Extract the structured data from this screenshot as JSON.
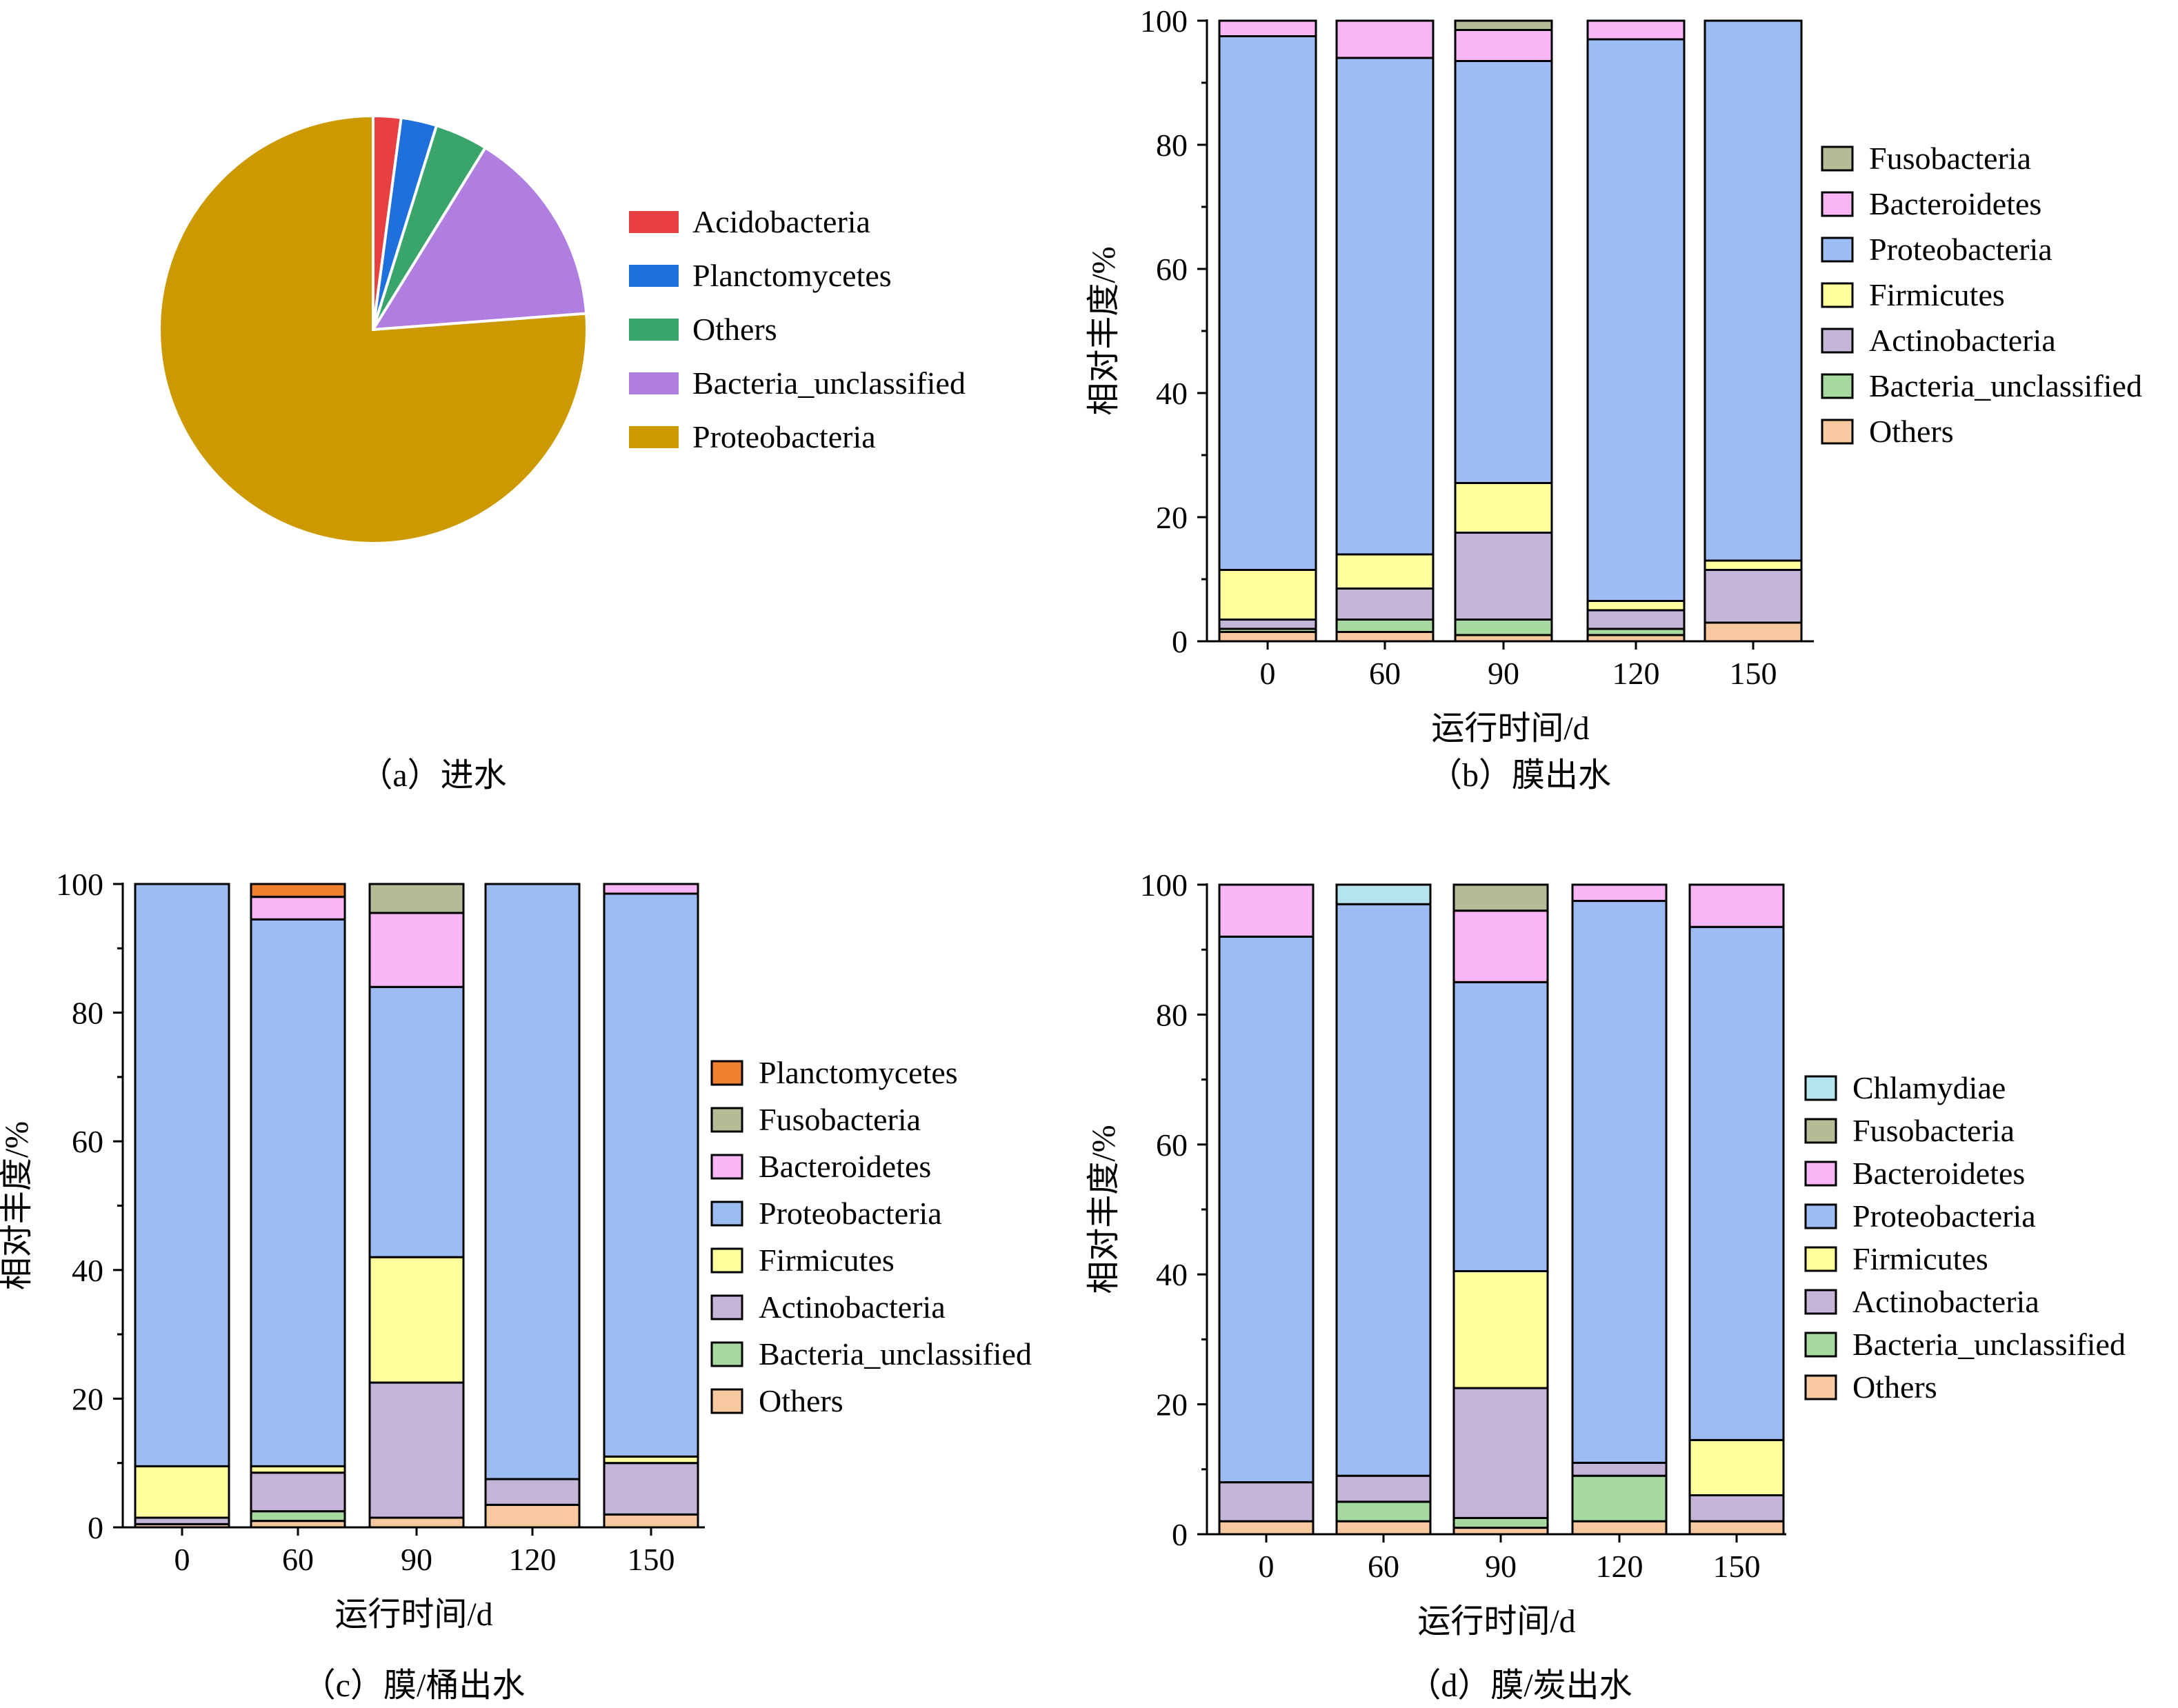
{
  "colors": {
    "Acidobacteria_pie": "#e84040",
    "Planctomycetes_pie": "#1f6fdc",
    "Others_pie": "#3aa56b",
    "Bacteria_unclassified_pie": "#b07ee0",
    "Proteobacteria_pie": "#cc9a00",
    "Others": "#f8c9a0",
    "Bacteria_unclassified": "#a6d9a0",
    "Actinobacteria": "#c3b4d8",
    "Firmicutes": "#ffff9e",
    "Proteobacteria": "#9dbcf3",
    "Bacteroidetes": "#f9b6f6",
    "Fusobacteria": "#b4bc96",
    "Planctomycetes": "#f08030",
    "Chlamydiae": "#b4e4ee"
  },
  "chart_data": [
    {
      "type": "pie",
      "caption": "（a）进水",
      "legend": [
        "Acidobacteria",
        "Planctomycetes",
        "Others",
        "Bacteria_unclassified",
        "Proteobacteria"
      ],
      "slices": [
        {
          "name": "Acidobacteria",
          "value": 2.1
        },
        {
          "name": "Planctomycetes",
          "value": 2.7
        },
        {
          "name": "Others",
          "value": 4.0
        },
        {
          "name": "Bacteria_unclassified",
          "value": 15.0
        },
        {
          "name": "Proteobacteria",
          "value": 76.2
        }
      ]
    },
    {
      "type": "bar",
      "stacked": true,
      "caption": "（b）膜出水",
      "xlabel": "运行时间/d",
      "ylabel": "相对丰度/%",
      "ylim": [
        0,
        100
      ],
      "yticks": [
        "0",
        "20",
        "40",
        "60",
        "80",
        "100"
      ],
      "categories": [
        "0",
        "60",
        "90",
        "120",
        "150"
      ],
      "legend": [
        "Fusobacteria",
        "Bacteroidetes",
        "Proteobacteria",
        "Firmicutes",
        "Actinobacteria",
        "Bacteria_unclassified",
        "Others"
      ],
      "series": [
        {
          "name": "Others",
          "values": [
            1.5,
            1.5,
            1.0,
            1.0,
            3.0
          ]
        },
        {
          "name": "Bacteria_unclassified",
          "values": [
            0.5,
            2.0,
            2.5,
            1.0,
            0.0
          ]
        },
        {
          "name": "Actinobacteria",
          "values": [
            1.5,
            5.0,
            14.0,
            3.0,
            8.5
          ]
        },
        {
          "name": "Firmicutes",
          "values": [
            8.0,
            5.5,
            8.0,
            1.5,
            1.5
          ]
        },
        {
          "name": "Proteobacteria",
          "values": [
            86.0,
            80.0,
            68.0,
            90.5,
            87.0
          ]
        },
        {
          "name": "Bacteroidetes",
          "values": [
            2.5,
            6.0,
            5.0,
            3.0,
            0.0
          ]
        },
        {
          "name": "Fusobacteria",
          "values": [
            0.0,
            0.0,
            1.5,
            0.0,
            0.0
          ]
        }
      ]
    },
    {
      "type": "bar",
      "stacked": true,
      "caption": "（c）膜/桶出水",
      "xlabel": "运行时间/d",
      "ylabel": "相对丰度/%",
      "ylim": [
        0,
        100
      ],
      "yticks": [
        "0",
        "20",
        "40",
        "60",
        "80",
        "100"
      ],
      "categories": [
        "0",
        "60",
        "90",
        "120",
        "150"
      ],
      "legend": [
        "Planctomycetes",
        "Fusobacteria",
        "Bacteroidetes",
        "Proteobacteria",
        "Firmicutes",
        "Actinobacteria",
        "Bacteria_unclassified",
        "Others"
      ],
      "series": [
        {
          "name": "Others",
          "values": [
            0.5,
            1.0,
            1.5,
            3.5,
            2.0
          ]
        },
        {
          "name": "Bacteria_unclassified",
          "values": [
            0.0,
            1.5,
            0.0,
            0.0,
            0.0
          ]
        },
        {
          "name": "Actinobacteria",
          "values": [
            1.0,
            6.0,
            21.0,
            4.0,
            8.0
          ]
        },
        {
          "name": "Firmicutes",
          "values": [
            8.0,
            1.0,
            19.5,
            0.0,
            1.0
          ]
        },
        {
          "name": "Proteobacteria",
          "values": [
            90.5,
            85.0,
            42.0,
            92.5,
            87.5
          ]
        },
        {
          "name": "Bacteroidetes",
          "values": [
            0.0,
            3.5,
            11.5,
            0.0,
            1.5
          ]
        },
        {
          "name": "Fusobacteria",
          "values": [
            0.0,
            0.0,
            4.5,
            0.0,
            0.0
          ]
        },
        {
          "name": "Planctomycetes",
          "values": [
            0.0,
            2.0,
            0.0,
            0.0,
            0.0
          ]
        }
      ]
    },
    {
      "type": "bar",
      "stacked": true,
      "caption": "（d）膜/炭出水",
      "xlabel": "运行时间/d",
      "ylabel": "相对丰度/%",
      "ylim": [
        0,
        100
      ],
      "yticks": [
        "0",
        "20",
        "40",
        "60",
        "80",
        "100"
      ],
      "categories": [
        "0",
        "60",
        "90",
        "120",
        "150"
      ],
      "legend": [
        "Chlamydiae",
        "Fusobacteria",
        "Bacteroidetes",
        "Proteobacteria",
        "Firmicutes",
        "Actinobacteria",
        "Bacteria_unclassified",
        "Others"
      ],
      "series": [
        {
          "name": "Others",
          "values": [
            2.0,
            2.0,
            1.0,
            2.0,
            2.0
          ]
        },
        {
          "name": "Bacteria_unclassified",
          "values": [
            0.0,
            3.0,
            1.5,
            7.0,
            0.0
          ]
        },
        {
          "name": "Actinobacteria",
          "values": [
            6.0,
            4.0,
            20.0,
            2.0,
            4.0
          ]
        },
        {
          "name": "Firmicutes",
          "values": [
            0.0,
            0.0,
            18.0,
            0.0,
            8.5
          ]
        },
        {
          "name": "Proteobacteria",
          "values": [
            84.0,
            88.0,
            44.5,
            86.5,
            79.0
          ]
        },
        {
          "name": "Bacteroidetes",
          "values": [
            8.0,
            0.0,
            11.0,
            2.5,
            6.5
          ]
        },
        {
          "name": "Fusobacteria",
          "values": [
            0.0,
            0.0,
            4.0,
            0.0,
            0.0
          ]
        },
        {
          "name": "Chlamydiae",
          "values": [
            0.0,
            3.0,
            0.0,
            0.0,
            0.0
          ]
        }
      ]
    }
  ]
}
